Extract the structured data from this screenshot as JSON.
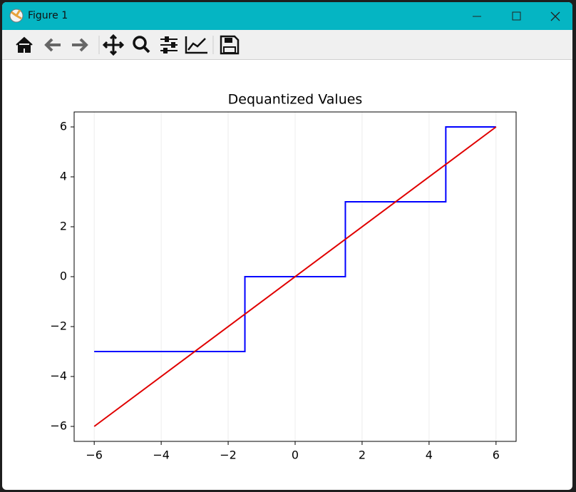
{
  "window": {
    "title": "Figure 1"
  },
  "chart_data": {
    "type": "line",
    "title": "Dequantized Values",
    "series": [
      {
        "color": "#0000ff",
        "x": [
          -6,
          -1.5,
          -1.5,
          1.5,
          1.5,
          4.5,
          4.5,
          6
        ],
        "values": [
          -3,
          -3,
          0,
          0,
          3,
          3,
          6,
          6
        ]
      },
      {
        "color": "#e00000",
        "x": [
          -6,
          6
        ],
        "values": [
          -6,
          6
        ]
      }
    ],
    "xlim": [
      -6.6,
      6.6
    ],
    "ylim": [
      -6.6,
      6.6
    ],
    "xticks": [
      {
        "value": -6,
        "label": "−6"
      },
      {
        "value": -4,
        "label": "−4"
      },
      {
        "value": -2,
        "label": "−2"
      },
      0,
      2,
      4,
      6
    ],
    "yticks": [
      {
        "value": -6,
        "label": "−6"
      },
      {
        "value": -4,
        "label": "−4"
      },
      {
        "value": -2,
        "label": "−2"
      },
      0,
      2,
      4,
      6
    ],
    "grid": "x"
  }
}
